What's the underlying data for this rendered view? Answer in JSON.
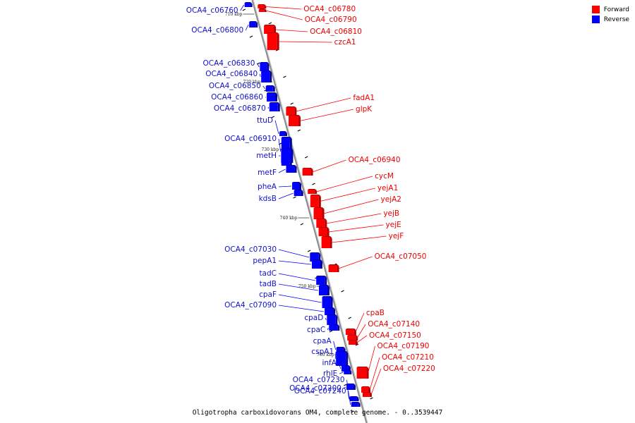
{
  "caption": "Oligotropha carboxidovorans OM4, complete genome. - 0..3539447",
  "legend": {
    "forward_label": "Forward",
    "reverse_label": "Reverse",
    "forward_color": "#ff0000",
    "reverse_color": "#0000ff"
  },
  "scale_marks": [
    "710 kbp",
    "720 kbp",
    "730 kbp",
    "740 kbp",
    "750 kbp",
    "760 kbp"
  ],
  "genes": [
    {
      "name": "OCA4_c06760",
      "strand": "reverse"
    },
    {
      "name": "OCA4_c06780",
      "strand": "forward"
    },
    {
      "name": "OCA4_c06790",
      "strand": "forward"
    },
    {
      "name": "OCA4_c06800",
      "strand": "reverse"
    },
    {
      "name": "OCA4_c06810",
      "strand": "forward"
    },
    {
      "name": "czcA1",
      "strand": "forward"
    },
    {
      "name": "OCA4_c06830",
      "strand": "reverse"
    },
    {
      "name": "OCA4_c06840",
      "strand": "reverse"
    },
    {
      "name": "OCA4_c06850",
      "strand": "reverse"
    },
    {
      "name": "OCA4_c06860",
      "strand": "reverse"
    },
    {
      "name": "OCA4_c06870",
      "strand": "reverse"
    },
    {
      "name": "fadA1",
      "strand": "forward"
    },
    {
      "name": "glpK",
      "strand": "forward"
    },
    {
      "name": "ttuD",
      "strand": "reverse"
    },
    {
      "name": "OCA4_c06910",
      "strand": "reverse"
    },
    {
      "name": "metH",
      "strand": "reverse"
    },
    {
      "name": "OCA4_c06940",
      "strand": "forward"
    },
    {
      "name": "metF",
      "strand": "reverse"
    },
    {
      "name": "cycM",
      "strand": "forward"
    },
    {
      "name": "pheA",
      "strand": "reverse"
    },
    {
      "name": "yejA1",
      "strand": "forward"
    },
    {
      "name": "kdsB",
      "strand": "reverse"
    },
    {
      "name": "yejA2",
      "strand": "forward"
    },
    {
      "name": "yejB",
      "strand": "forward"
    },
    {
      "name": "yejE",
      "strand": "forward"
    },
    {
      "name": "yejF",
      "strand": "forward"
    },
    {
      "name": "OCA4_c07030",
      "strand": "reverse"
    },
    {
      "name": "OCA4_c07050",
      "strand": "forward"
    },
    {
      "name": "pepA1",
      "strand": "reverse"
    },
    {
      "name": "tadC",
      "strand": "reverse"
    },
    {
      "name": "tadB",
      "strand": "reverse"
    },
    {
      "name": "cpaF",
      "strand": "reverse"
    },
    {
      "name": "OCA4_c07090",
      "strand": "reverse"
    },
    {
      "name": "cpaB",
      "strand": "forward"
    },
    {
      "name": "cpaD",
      "strand": "reverse"
    },
    {
      "name": "OCA4_c07140",
      "strand": "forward"
    },
    {
      "name": "cpaC",
      "strand": "reverse"
    },
    {
      "name": "OCA4_c07150",
      "strand": "forward"
    },
    {
      "name": "cpaA",
      "strand": "reverse"
    },
    {
      "name": "OCA4_c07190",
      "strand": "forward"
    },
    {
      "name": "cspA1",
      "strand": "reverse"
    },
    {
      "name": "OCA4_c07210",
      "strand": "forward"
    },
    {
      "name": "infA",
      "strand": "reverse"
    },
    {
      "name": "OCA4_c07220",
      "strand": "forward"
    },
    {
      "name": "rhlE",
      "strand": "reverse"
    },
    {
      "name": "OCA4_c07230",
      "strand": "reverse"
    },
    {
      "name": "OCA4_c07200",
      "strand": "reverse"
    },
    {
      "name": "OCA4_c07240",
      "strand": "reverse"
    }
  ]
}
